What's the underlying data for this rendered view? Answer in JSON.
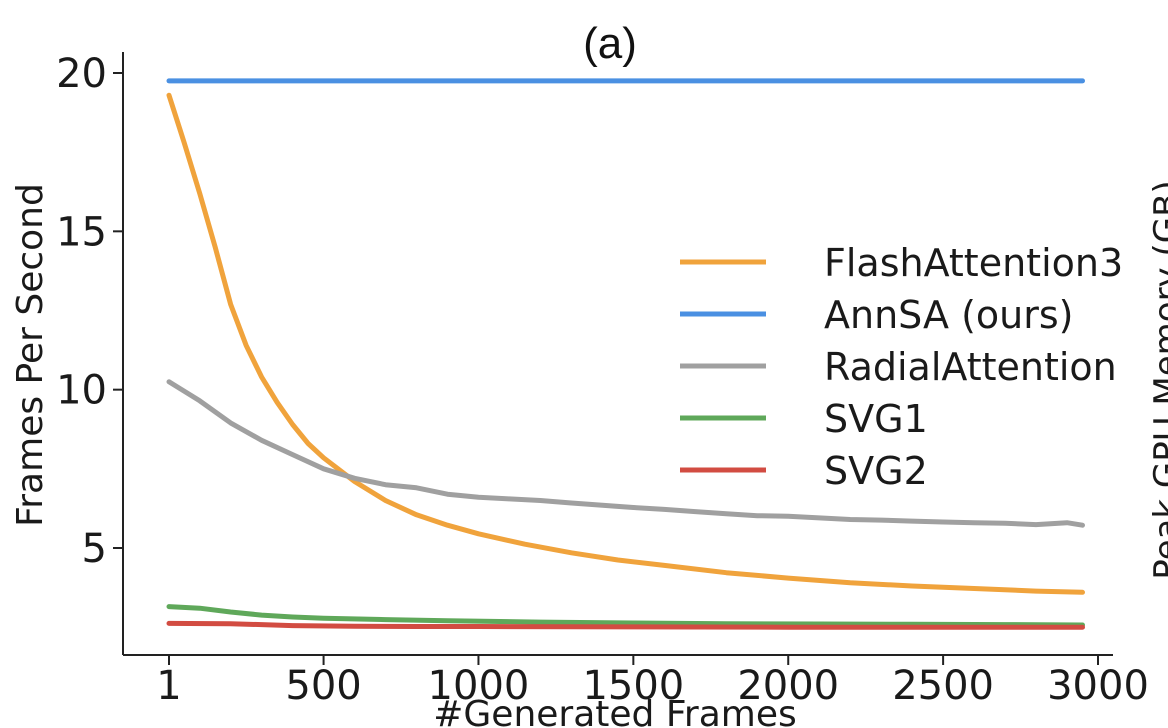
{
  "chart_data": {
    "type": "line",
    "title": "(a)",
    "xlabel": "#Generated Frames",
    "ylabel": "Frames Per Second",
    "right_axis_label_partial": "Peak GPU Memory (GB)",
    "xlim": [
      1,
      3000
    ],
    "ylim": [
      2.0,
      20.5
    ],
    "x_ticks": [
      1,
      500,
      1000,
      1500,
      2000,
      2500,
      3000
    ],
    "x_tick_labels": [
      "1",
      "500",
      "1000",
      "1500",
      "2000",
      "2500",
      "3000"
    ],
    "y_ticks": [
      5,
      10,
      15,
      20
    ],
    "y_tick_labels": [
      "5",
      "10",
      "15",
      "20"
    ],
    "legend_position": "center-right",
    "series": [
      {
        "name": "FlashAttention3",
        "color": "#F0A33C",
        "x": [
          1,
          50,
          100,
          150,
          200,
          250,
          300,
          350,
          400,
          450,
          500,
          600,
          700,
          800,
          900,
          1000,
          1150,
          1300,
          1450,
          1600,
          1800,
          2000,
          2200,
          2400,
          2600,
          2800,
          2950
        ],
        "y": [
          19.3,
          17.8,
          16.2,
          14.5,
          12.7,
          11.4,
          10.4,
          9.6,
          8.9,
          8.3,
          7.85,
          7.1,
          6.5,
          6.05,
          5.72,
          5.45,
          5.12,
          4.85,
          4.62,
          4.45,
          4.22,
          4.05,
          3.9,
          3.8,
          3.72,
          3.64,
          3.6
        ]
      },
      {
        "name": "AnnSA (ours)",
        "color": "#4A90E2",
        "x": [
          1,
          2950
        ],
        "y": [
          19.75,
          19.75
        ]
      },
      {
        "name": "RadialAttention",
        "color": "#A0A0A0",
        "x": [
          1,
          100,
          200,
          300,
          400,
          500,
          600,
          700,
          800,
          900,
          1000,
          1100,
          1200,
          1300,
          1400,
          1500,
          1600,
          1700,
          1800,
          1900,
          2000,
          2100,
          2200,
          2300,
          2400,
          2500,
          2600,
          2700,
          2800,
          2900,
          2950
        ],
        "y": [
          10.25,
          9.65,
          8.95,
          8.4,
          7.95,
          7.5,
          7.2,
          7.0,
          6.9,
          6.7,
          6.6,
          6.55,
          6.5,
          6.42,
          6.35,
          6.28,
          6.22,
          6.15,
          6.08,
          6.02,
          6.0,
          5.95,
          5.9,
          5.88,
          5.85,
          5.82,
          5.8,
          5.78,
          5.74,
          5.8,
          5.72
        ]
      },
      {
        "name": "SVG1",
        "color": "#5FA85A",
        "x": [
          1,
          100,
          200,
          300,
          400,
          500,
          700,
          900,
          1200,
          1500,
          1800,
          2100,
          2400,
          2700,
          2950
        ],
        "y": [
          3.15,
          3.1,
          2.98,
          2.88,
          2.82,
          2.78,
          2.74,
          2.7,
          2.66,
          2.63,
          2.61,
          2.6,
          2.59,
          2.58,
          2.57
        ]
      },
      {
        "name": "SVG2",
        "color": "#D24C42",
        "x": [
          1,
          200,
          400,
          600,
          800,
          1000,
          1500,
          2000,
          2500,
          2950
        ],
        "y": [
          2.62,
          2.61,
          2.55,
          2.53,
          2.52,
          2.52,
          2.51,
          2.5,
          2.5,
          2.5
        ]
      }
    ]
  }
}
